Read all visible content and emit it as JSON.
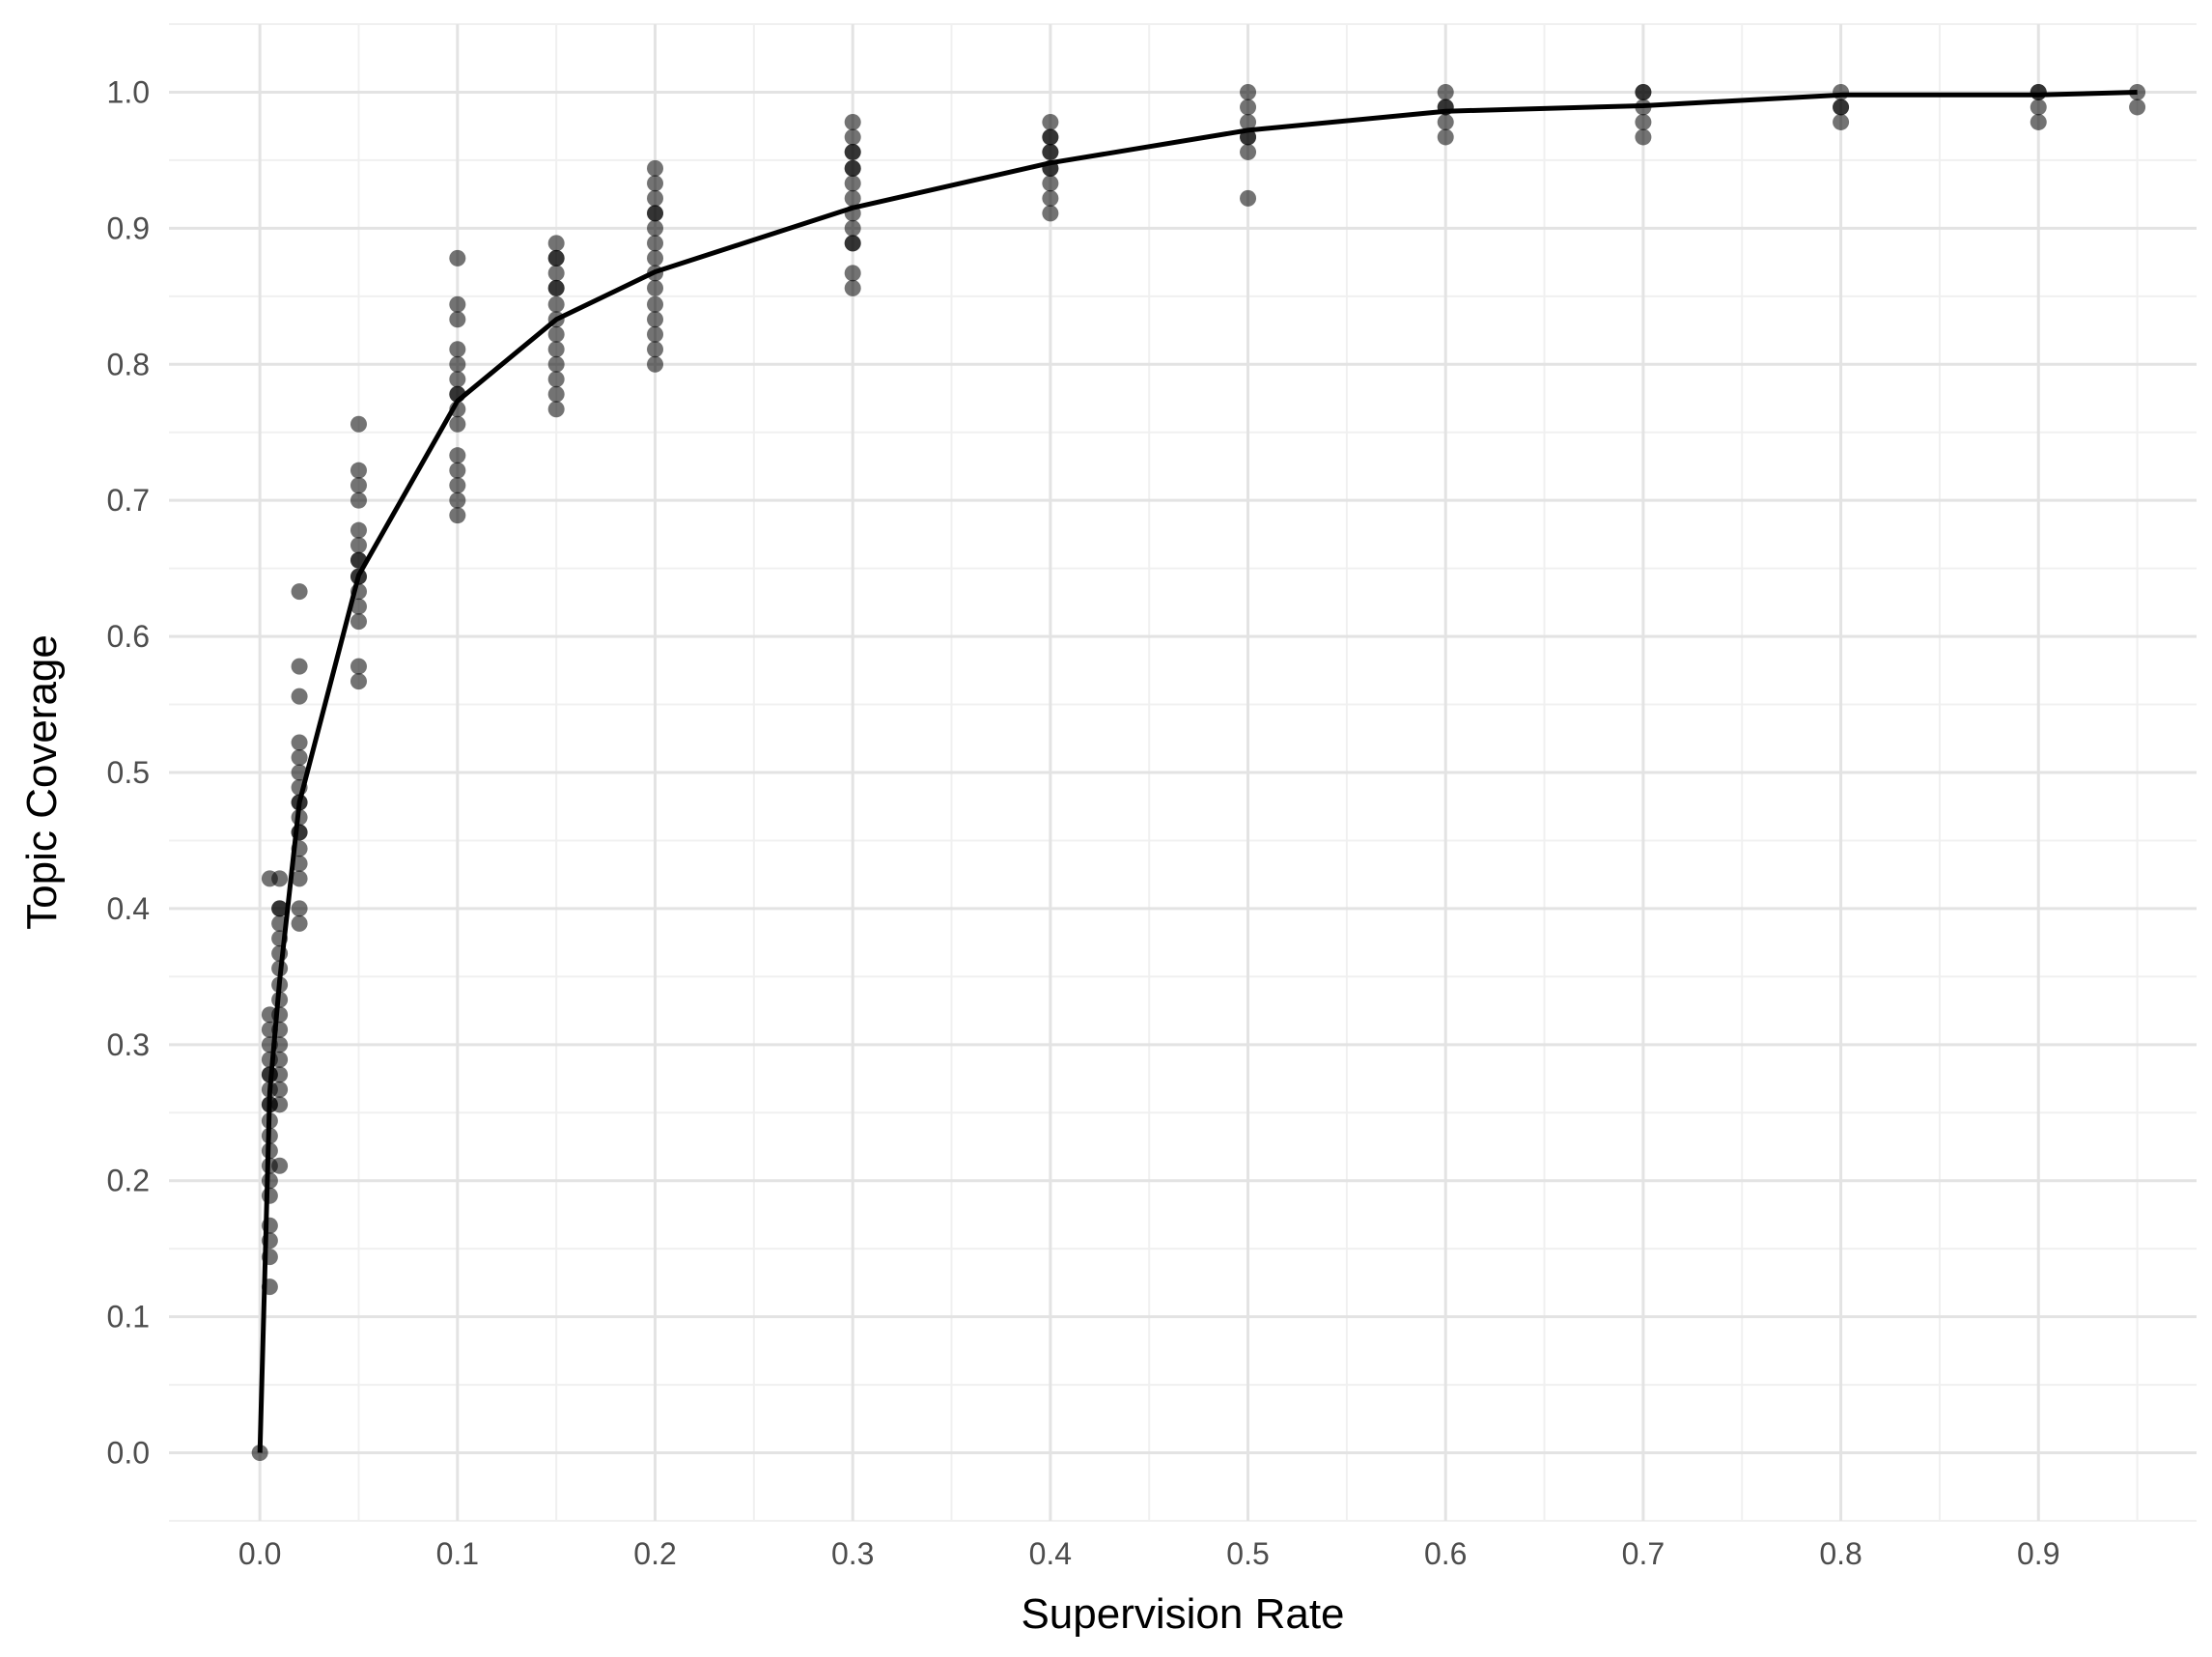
{
  "chart_data": {
    "type": "scatter",
    "title": "",
    "xlabel": "Supervision Rate",
    "ylabel": "Topic Coverage",
    "xlim": [
      -0.046,
      0.98
    ],
    "ylim": [
      -0.05,
      1.05
    ],
    "xticks": [
      0.0,
      0.1,
      0.2,
      0.3,
      0.4,
      0.5,
      0.6,
      0.7,
      0.8,
      0.9
    ],
    "xtick_labels": [
      "0.0",
      "0.1",
      "0.2",
      "0.3",
      "0.4",
      "0.5",
      "0.6",
      "0.7",
      "0.8",
      "0.9"
    ],
    "yticks": [
      0.0,
      0.1,
      0.2,
      0.3,
      0.4,
      0.5,
      0.6,
      0.7,
      0.8,
      0.9,
      1.0
    ],
    "ytick_labels": [
      "0.0",
      "0.1",
      "0.2",
      "0.3",
      "0.4",
      "0.5",
      "0.6",
      "0.7",
      "0.8",
      "0.9",
      "1.0"
    ],
    "grid": true,
    "legend": "none",
    "colors": {
      "point": "#000000",
      "line": "#000000",
      "grid_major": "#e3e3e3",
      "grid_minor": "#f0f0f0",
      "tick_text": "#4d4d4d"
    },
    "series": [
      {
        "type": "points",
        "x": [
          0.0,
          0.005,
          0.005,
          0.005,
          0.005,
          0.005,
          0.005,
          0.005,
          0.005,
          0.005,
          0.005,
          0.005,
          0.005,
          0.005,
          0.005,
          0.005,
          0.005,
          0.005,
          0.005,
          0.005,
          0.005,
          0.01,
          0.01,
          0.01,
          0.01,
          0.01,
          0.01,
          0.01,
          0.01,
          0.01,
          0.01,
          0.01,
          0.01,
          0.01,
          0.01,
          0.01,
          0.01,
          0.01,
          0.02,
          0.02,
          0.02,
          0.02,
          0.02,
          0.02,
          0.02,
          0.02,
          0.02,
          0.02,
          0.02,
          0.02,
          0.02,
          0.02,
          0.02,
          0.02,
          0.02,
          0.05,
          0.05,
          0.05,
          0.05,
          0.05,
          0.05,
          0.05,
          0.05,
          0.05,
          0.05,
          0.05,
          0.05,
          0.05,
          0.05,
          0.05,
          0.1,
          0.1,
          0.1,
          0.1,
          0.1,
          0.1,
          0.1,
          0.1,
          0.1,
          0.1,
          0.1,
          0.1,
          0.1,
          0.1,
          0.1,
          0.15,
          0.15,
          0.15,
          0.15,
          0.15,
          0.15,
          0.15,
          0.15,
          0.15,
          0.15,
          0.15,
          0.15,
          0.15,
          0.15,
          0.2,
          0.2,
          0.2,
          0.2,
          0.2,
          0.2,
          0.2,
          0.2,
          0.2,
          0.2,
          0.2,
          0.2,
          0.2,
          0.2,
          0.2,
          0.3,
          0.3,
          0.3,
          0.3,
          0.3,
          0.3,
          0.3,
          0.3,
          0.3,
          0.3,
          0.3,
          0.3,
          0.3,
          0.3,
          0.4,
          0.4,
          0.4,
          0.4,
          0.4,
          0.4,
          0.4,
          0.4,
          0.4,
          0.4,
          0.5,
          0.5,
          0.5,
          0.5,
          0.5,
          0.5,
          0.5,
          0.6,
          0.6,
          0.6,
          0.6,
          0.6,
          0.7,
          0.7,
          0.7,
          0.7,
          0.7,
          0.8,
          0.8,
          0.8,
          0.8,
          0.9,
          0.9,
          0.9,
          0.9,
          0.95,
          0.95
        ],
        "y": [
          0.0,
          0.122,
          0.144,
          0.156,
          0.167,
          0.189,
          0.2,
          0.211,
          0.222,
          0.233,
          0.244,
          0.256,
          0.267,
          0.278,
          0.289,
          0.3,
          0.311,
          0.322,
          0.422,
          0.278,
          0.256,
          0.211,
          0.256,
          0.267,
          0.278,
          0.289,
          0.3,
          0.311,
          0.322,
          0.333,
          0.344,
          0.356,
          0.367,
          0.378,
          0.389,
          0.4,
          0.422,
          0.4,
          0.389,
          0.4,
          0.422,
          0.433,
          0.444,
          0.456,
          0.467,
          0.478,
          0.489,
          0.5,
          0.511,
          0.522,
          0.556,
          0.578,
          0.633,
          0.478,
          0.456,
          0.567,
          0.578,
          0.611,
          0.622,
          0.633,
          0.644,
          0.656,
          0.667,
          0.678,
          0.7,
          0.711,
          0.722,
          0.756,
          0.656,
          0.644,
          0.689,
          0.7,
          0.711,
          0.722,
          0.733,
          0.756,
          0.767,
          0.778,
          0.789,
          0.8,
          0.811,
          0.833,
          0.844,
          0.878,
          0.778,
          0.767,
          0.778,
          0.789,
          0.8,
          0.811,
          0.822,
          0.833,
          0.844,
          0.856,
          0.867,
          0.878,
          0.889,
          0.856,
          0.878,
          0.8,
          0.811,
          0.822,
          0.833,
          0.844,
          0.856,
          0.867,
          0.878,
          0.889,
          0.9,
          0.911,
          0.922,
          0.933,
          0.944,
          0.911,
          0.856,
          0.867,
          0.889,
          0.9,
          0.911,
          0.922,
          0.933,
          0.944,
          0.956,
          0.967,
          0.978,
          0.889,
          0.944,
          0.956,
          0.911,
          0.922,
          0.933,
          0.944,
          0.956,
          0.967,
          0.978,
          0.956,
          0.944,
          0.967,
          0.922,
          0.956,
          0.967,
          0.978,
          0.989,
          1.0,
          0.967,
          0.967,
          0.978,
          0.989,
          1.0,
          0.989,
          0.967,
          0.978,
          0.989,
          1.0,
          1.0,
          0.978,
          0.989,
          1.0,
          0.989,
          0.978,
          0.989,
          1.0,
          1.0,
          0.989,
          1.0
        ]
      },
      {
        "type": "line",
        "x": [
          0.0,
          0.005,
          0.01,
          0.02,
          0.05,
          0.1,
          0.15,
          0.2,
          0.3,
          0.4,
          0.5,
          0.6,
          0.7,
          0.8,
          0.9,
          0.95
        ],
        "y": [
          0.0,
          0.265,
          0.347,
          0.478,
          0.645,
          0.773,
          0.833,
          0.868,
          0.915,
          0.948,
          0.972,
          0.986,
          0.99,
          0.998,
          0.998,
          1.0
        ]
      }
    ]
  }
}
